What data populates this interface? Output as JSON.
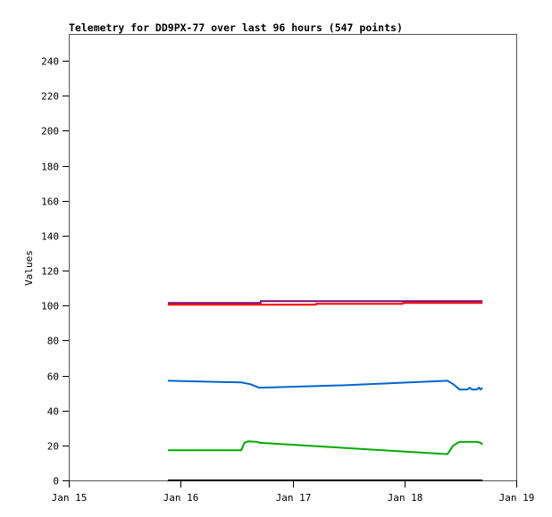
{
  "chart_data": {
    "type": "line",
    "title": "Telemetry for DD9PX-77 over last 96 hours (547 points)",
    "xlabel": "",
    "ylabel": "Values",
    "xlim": [
      "01-15 00:00",
      "01-19 00:00"
    ],
    "ylim": [
      0,
      255
    ],
    "xticks": [
      "Jan 15",
      "Jan 16",
      "Jan 17",
      "Jan 18",
      "Jan 19"
    ],
    "yticks": [
      0,
      20,
      40,
      60,
      80,
      100,
      120,
      140,
      160,
      180,
      200,
      220,
      240
    ],
    "grid": false,
    "series": [
      {
        "color": "#7a0a7a",
        "points": [
          [
            "01-15 21:15",
            101.5
          ],
          [
            "01-16 17:10",
            101.5
          ],
          [
            "01-16 17:12",
            102.5
          ],
          [
            "01-18 16:45",
            102.5
          ]
        ]
      },
      {
        "color": "#ff0000",
        "points": [
          [
            "01-15 21:15",
            100.5
          ],
          [
            "01-17 05:00",
            100.5
          ],
          [
            "01-17 05:05",
            101
          ],
          [
            "01-17 23:40",
            101
          ],
          [
            "01-17 23:45",
            101.5
          ],
          [
            "01-18 16:45",
            101.5
          ]
        ]
      },
      {
        "color": "#0066cc",
        "points": [
          [
            "01-15 21:15",
            57
          ],
          [
            "01-16 13:00",
            56
          ],
          [
            "01-16 15:00",
            55
          ],
          [
            "01-16 16:50",
            53
          ],
          [
            "01-17 12:00",
            54.5
          ],
          [
            "01-18 09:15",
            57
          ],
          [
            "01-18 10:30",
            55
          ],
          [
            "01-18 11:50",
            52
          ],
          [
            "01-18 13:30",
            52
          ],
          [
            "01-18 14:00",
            53
          ],
          [
            "01-18 14:30",
            52
          ],
          [
            "01-18 15:30",
            52
          ],
          [
            "01-18 16:00",
            53
          ],
          [
            "01-18 16:20",
            52
          ],
          [
            "01-18 16:45",
            53
          ]
        ]
      },
      {
        "color": "#00aa00",
        "points": [
          [
            "01-15 21:15",
            17.2
          ],
          [
            "01-16 13:00",
            17.2
          ],
          [
            "01-16 13:40",
            21.5
          ],
          [
            "01-16 14:30",
            22.3
          ],
          [
            "01-16 16:30",
            22
          ],
          [
            "01-16 17:00",
            21.5
          ],
          [
            "01-18 09:15",
            15
          ],
          [
            "01-18 10:30",
            20
          ],
          [
            "01-18 11:50",
            22
          ],
          [
            "01-18 15:40",
            22
          ],
          [
            "01-18 16:20",
            21.5
          ],
          [
            "01-18 16:45",
            20.5
          ]
        ]
      },
      {
        "color": "#000000",
        "points": [
          [
            "01-15 21:15",
            0
          ],
          [
            "01-18 16:45",
            0
          ]
        ]
      }
    ]
  }
}
